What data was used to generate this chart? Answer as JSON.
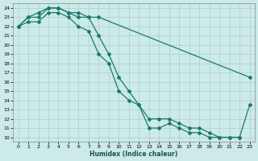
{
  "xlabel": "Humidex (Indice chaleur)",
  "bg_color": "#cceae7",
  "grid_color": "#aacfcc",
  "line_color": "#1a7a6e",
  "xlim": [
    -0.5,
    23.5
  ],
  "ylim": [
    9.5,
    24.5
  ],
  "xticks": [
    0,
    1,
    2,
    3,
    4,
    5,
    6,
    7,
    8,
    9,
    10,
    11,
    12,
    13,
    14,
    15,
    16,
    17,
    18,
    19,
    20,
    21,
    22,
    23
  ],
  "yticks": [
    10,
    11,
    12,
    13,
    14,
    15,
    16,
    17,
    18,
    19,
    20,
    21,
    22,
    23,
    24
  ],
  "line1_x": [
    0,
    1,
    2,
    3,
    4,
    5,
    6,
    7,
    8,
    23
  ],
  "line1_y": [
    22,
    23,
    23.5,
    24,
    24,
    23.5,
    23.5,
    23,
    23,
    16.5
  ],
  "line2_x": [
    0,
    1,
    2,
    3,
    4,
    5,
    6,
    7,
    8,
    9,
    10,
    11,
    12,
    13,
    14,
    15,
    16,
    17,
    18,
    19,
    20,
    21,
    22,
    23
  ],
  "line2_y": [
    22,
    23,
    23,
    24,
    24,
    23.5,
    23,
    23,
    21,
    19,
    16.5,
    15,
    13.5,
    12,
    12,
    12,
    11.5,
    11,
    11,
    10.5,
    10,
    10,
    10,
    13.5
  ],
  "line3_x": [
    0,
    1,
    2,
    3,
    4,
    5,
    6,
    7,
    8,
    9,
    10,
    11,
    12,
    13,
    14,
    15,
    16,
    17,
    18,
    19,
    20,
    21,
    22
  ],
  "line3_y": [
    22,
    22.5,
    22.5,
    23.5,
    23.5,
    23,
    22,
    21.5,
    19,
    18,
    15,
    14,
    13.5,
    11,
    11,
    11.5,
    11,
    10.5,
    10.5,
    10,
    10,
    10,
    10
  ]
}
